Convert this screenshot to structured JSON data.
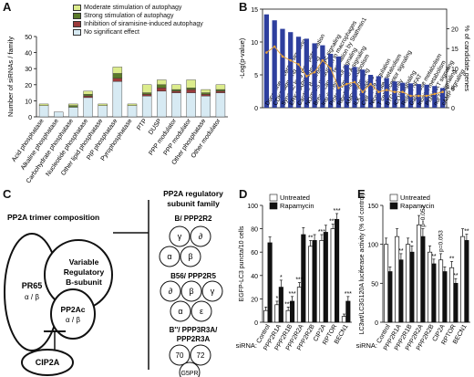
{
  "panels": {
    "a": "A",
    "b": "B",
    "c": "C",
    "d": "D",
    "e": "E"
  },
  "chart_data": [
    {
      "id": "A",
      "type": "bar",
      "stacked": true,
      "ylabel": "Number of siRNAs / family",
      "ylim": [
        0,
        50
      ],
      "yticks": [
        0,
        10,
        20,
        30,
        40,
        50
      ],
      "categories": [
        "Acid phosphatase",
        "Alkaline phosphatase",
        "Carbohydrate phosphatase",
        "Nucleotide phosphatase",
        "Other lipid phosphatase",
        "PIP phosphatase",
        "Pyrophosphatase",
        "PTP",
        "DUSP",
        "PPP modulator",
        "PPP modulator",
        "Other phosphatase",
        "Other modulator"
      ],
      "series": [
        {
          "name": "No significant effect",
          "color": "#d7eaf3",
          "values": [
            7,
            3,
            6,
            12,
            7,
            22,
            7,
            13,
            16,
            15,
            15,
            13,
            15
          ]
        },
        {
          "name": "Inhibition of siramisine-induced autophagy",
          "color": "#9b3a3a",
          "values": [
            0,
            0,
            0,
            1,
            0,
            2,
            0,
            1,
            2,
            1,
            2,
            1,
            1
          ]
        },
        {
          "name": "Strong stimulation of autophagy",
          "color": "#5a7a2a",
          "values": [
            0,
            0,
            1,
            1,
            0,
            3,
            0,
            1,
            2,
            1,
            1,
            1,
            1
          ]
        },
        {
          "name": "Moderate stimulation of autophagy",
          "color": "#dcec8c",
          "values": [
            1,
            0,
            1,
            2,
            1,
            4,
            1,
            5,
            3,
            3,
            5,
            2,
            3
          ]
        }
      ]
    },
    {
      "id": "B",
      "type": "bar",
      "ylabel": "-Log(p-value)",
      "y2label": "% of candidate genes",
      "ylim": [
        0,
        15
      ],
      "yticks": [
        0,
        5,
        10,
        15
      ],
      "y2lim": [
        0,
        25
      ],
      "y2ticks": [
        0,
        5,
        10,
        15,
        20
      ],
      "categories": [
        "Dopamine receptor signaling",
        "CDK5 signaling",
        "Synaptic long term potentiation",
        "ERK/MAPK signaling",
        "Cardiac B-adrenergic signaling",
        "NO/ROS production in macrophages",
        "Breast cancer regulation by Stathmin1",
        "Insulin receptor signaling",
        "Protein kinase A signaling",
        "Riboflavin metabolism",
        "AMPK signaling",
        "ILK signaling",
        "Cell cycle regulation",
        "Nicotinate metabolism",
        "T cell receptor signaling",
        "BTG family",
        "iCOS signaling",
        "Role of NFAT",
        "Galactose metabolism",
        "Inositol metabolism",
        "PI3K/AKT signaling",
        "nur77 signaling",
        "cAMP signaling"
      ],
      "series": [
        {
          "name": "-Log(p-value)",
          "color": "#2e3f9e",
          "values": [
            14.2,
            13.3,
            12.0,
            11.5,
            10.8,
            10.5,
            9.8,
            9.5,
            8.2,
            7.8,
            6.5,
            6.2,
            5.8,
            5.0,
            4.8,
            4.5,
            4.0,
            3.8,
            3.7,
            3.6,
            3.5,
            3.3,
            3.0
          ]
        },
        {
          "name": "% of candidate genes",
          "color": "#e8a43a",
          "values": [
            14,
            15.5,
            13,
            12,
            11,
            8,
            9,
            12,
            10,
            5,
            6,
            6.5,
            4,
            6,
            4,
            4.5,
            4,
            4,
            3,
            3,
            3,
            3.5,
            4
          ]
        }
      ]
    },
    {
      "id": "D",
      "type": "bar",
      "ylabel": "EGFP-LC3 puncta/10 cells",
      "ylim": [
        0,
        100
      ],
      "yticks": [
        0,
        20,
        40,
        60,
        80,
        100
      ],
      "xprefix": "siRNA:",
      "categories": [
        "Control",
        "PPP2R1A",
        "PPP2R1B",
        "PPP2R2A",
        "PPP2R2B",
        "CIP2A",
        "RPTOR",
        "BECN1"
      ],
      "series": [
        {
          "name": "Untreated",
          "color": "#ffffff",
          "values": [
            10,
            15,
            10,
            30,
            65,
            70,
            80,
            5
          ],
          "errors": [
            3,
            3,
            3,
            4,
            5,
            5,
            4,
            2
          ]
        },
        {
          "name": "Rapamycin",
          "color": "#111111",
          "values": [
            68,
            30,
            18,
            75,
            70,
            77,
            88,
            18
          ],
          "errors": [
            5,
            6,
            4,
            6,
            5,
            6,
            5,
            4
          ]
        }
      ],
      "annotations": [
        {
          "text": "*",
          "cat": 1,
          "series": 0
        },
        {
          "text": "*",
          "cat": 1,
          "series": 1
        },
        {
          "text": "***",
          "cat": 2,
          "series": 0
        },
        {
          "text": "***",
          "cat": 2,
          "series": 1
        },
        {
          "text": "***",
          "cat": 3,
          "series": 0
        },
        {
          "text": "**",
          "cat": 4,
          "series": 0
        },
        {
          "text": "***",
          "cat": 5,
          "series": 0
        },
        {
          "text": "***",
          "cat": 6,
          "series": 0
        },
        {
          "text": "***",
          "cat": 6,
          "series": 1
        },
        {
          "text": "***",
          "cat": 7,
          "series": 1
        }
      ]
    },
    {
      "id": "E",
      "type": "bar",
      "ylabel": "LC3wt/LC3G120A luciferase activity (% of control)",
      "ylim": [
        0,
        150
      ],
      "yticks": [
        0,
        50,
        100,
        150
      ],
      "xprefix": "siRNA:",
      "categories": [
        "Control",
        "PPP2R1A",
        "PPP2R1B",
        "PPP2R2A",
        "PPP2R2B",
        "CIP2A",
        "RPTOR",
        "BECN1"
      ],
      "series": [
        {
          "name": "Untreated",
          "color": "#ffffff",
          "values": [
            100,
            110,
            100,
            125,
            90,
            80,
            70,
            110
          ],
          "errors": [
            8,
            10,
            8,
            12,
            8,
            8,
            8,
            10
          ]
        },
        {
          "name": "Rapamycin",
          "color": "#111111",
          "values": [
            65,
            80,
            90,
            110,
            75,
            65,
            50,
            105
          ],
          "errors": [
            6,
            8,
            8,
            10,
            6,
            6,
            6,
            8
          ]
        }
      ],
      "annotations": [
        {
          "text": "**",
          "cat": 1,
          "series": 1
        },
        {
          "text": "*",
          "cat": 2,
          "series": 1
        },
        {
          "text": "p=0.052",
          "cat": 3,
          "series": 1,
          "rotate": true
        },
        {
          "text": "**",
          "cat": 4,
          "series": 1
        },
        {
          "text": "p=0.053",
          "cat": 5,
          "series": 0,
          "rotate": true
        },
        {
          "text": "**",
          "cat": 6,
          "series": 0
        },
        {
          "text": "**",
          "cat": 6,
          "series": 1
        },
        {
          "text": "**",
          "cat": 7,
          "series": 1
        }
      ]
    }
  ],
  "panel_c": {
    "title": "PP2A trimer composition",
    "pr65": "PR65",
    "pr65_sub": "α / β",
    "pp2ac": "PP2Ac",
    "pp2ac_sub": "α / β",
    "variable_l1": "Variable",
    "variable_l2": "Regulatory",
    "variable_l3": "B-subunit",
    "cip2a": "CIP2A",
    "family_l1": "PP2A regulatory",
    "family_l2": "subunit family",
    "b_family": "B/ PPP2R2",
    "b_subunits": [
      "γ",
      "∂",
      "α",
      "β"
    ],
    "b56_family": "B56/ PPP2R5",
    "b56_subunits": [
      "∂",
      "β",
      "γ",
      "α",
      "ε"
    ],
    "bpp_family_l1": "B''/ PPP3R3A/",
    "bpp_family_l2": "PPP2R3A",
    "bpp_subunits": [
      "70",
      "72",
      "G5PR"
    ]
  }
}
